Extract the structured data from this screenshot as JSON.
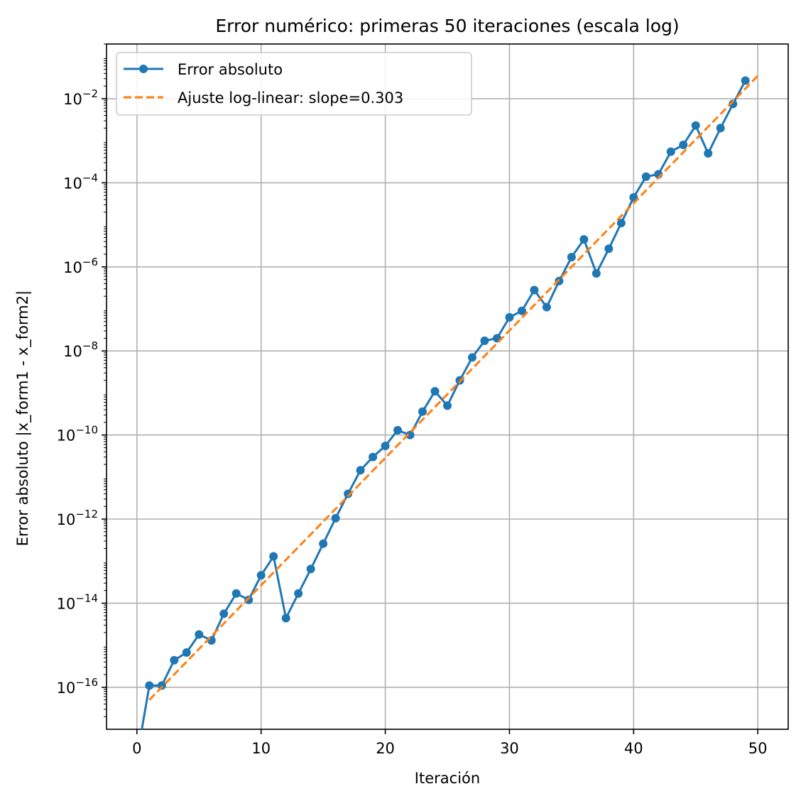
{
  "chart_data": {
    "type": "line",
    "title": "Error numérico: primeras 50 iteraciones (escala log)",
    "xlabel": "Iteración",
    "ylabel": "Error absoluto |x_form1 - x_form2|",
    "yscale": "log",
    "xlim": [
      -2.45,
      52.45
    ],
    "ylim": [
      1e-17,
      0.2
    ],
    "x_ticks": [
      0,
      10,
      20,
      30,
      40,
      50
    ],
    "y_tick_exponents": [
      -16,
      -14,
      -12,
      -10,
      -8,
      -6,
      -4,
      -2
    ],
    "grid": true,
    "legend_position": "top-left",
    "series": [
      {
        "name": "Error absoluto",
        "color": "#1f77b4",
        "style": "solid-marker",
        "x": [
          0,
          1,
          2,
          3,
          4,
          5,
          6,
          7,
          8,
          9,
          10,
          11,
          12,
          13,
          14,
          15,
          16,
          17,
          18,
          19,
          20,
          21,
          22,
          23,
          24,
          25,
          26,
          27,
          28,
          29,
          30,
          31,
          32,
          33,
          34,
          35,
          36,
          37,
          38,
          39,
          40,
          41,
          42,
          43,
          44,
          45,
          46,
          47,
          48,
          49
        ],
        "y": [
          0,
          1.1e-16,
          1.1e-16,
          4.4e-16,
          6.7e-16,
          1.8e-15,
          1.3e-15,
          5.6e-15,
          1.7e-14,
          1.2e-14,
          4.6e-14,
          1.3e-13,
          4.4e-15,
          1.7e-14,
          6.5e-14,
          2.6e-13,
          1.05e-12,
          4e-12,
          1.45e-11,
          3e-11,
          5.5e-11,
          1.3e-10,
          1e-10,
          3.6e-10,
          1.1e-09,
          5e-10,
          2e-09,
          7e-09,
          1.75e-08,
          2e-08,
          6.3e-08,
          9e-08,
          2.8e-07,
          1.1e-07,
          4.6e-07,
          1.7e-06,
          4.5e-06,
          7e-07,
          2.7e-06,
          1.1e-05,
          4.5e-05,
          0.00014,
          0.00016,
          0.00055,
          0.0008,
          0.0023,
          0.0005,
          0.002,
          0.0075,
          0.027
        ]
      },
      {
        "name": "Ajuste log-linear: slope=0.303",
        "color": "#ff7f0e",
        "style": "dashed",
        "slope_log10": 0.303,
        "x": [
          1,
          50
        ],
        "y": [
          5e-17,
          0.035
        ]
      }
    ]
  }
}
